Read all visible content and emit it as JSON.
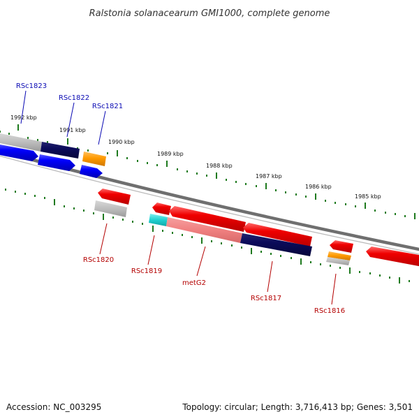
{
  "title": "Ralstonia solanacearum GMI1000, complete genome",
  "footer": {
    "accession": "Accession: NC_003295",
    "topology": "Topology: circular; Length: 3,716,413 bp; Genes: 3,501"
  },
  "colors": {
    "backbone": "#7a7a7a",
    "tick": "#1e7a1e",
    "forward_label": "#0a0ab4",
    "reverse_label": "#b40000"
  },
  "scale_labels": [
    "1992 kbp",
    "1991 kbp",
    "1990 kbp",
    "1989 kbp",
    "1988 kbp",
    "1987 kbp",
    "1986 kbp",
    "1985 kbp"
  ],
  "forward_genes": [
    {
      "name": "RSc1823"
    },
    {
      "name": "RSc1822"
    },
    {
      "name": "RSc1821"
    }
  ],
  "reverse_genes": [
    {
      "name": "RSc1820"
    },
    {
      "name": "RSc1819"
    },
    {
      "name": "metG2"
    },
    {
      "name": "RSc1817"
    },
    {
      "name": "RSc1816"
    }
  ]
}
